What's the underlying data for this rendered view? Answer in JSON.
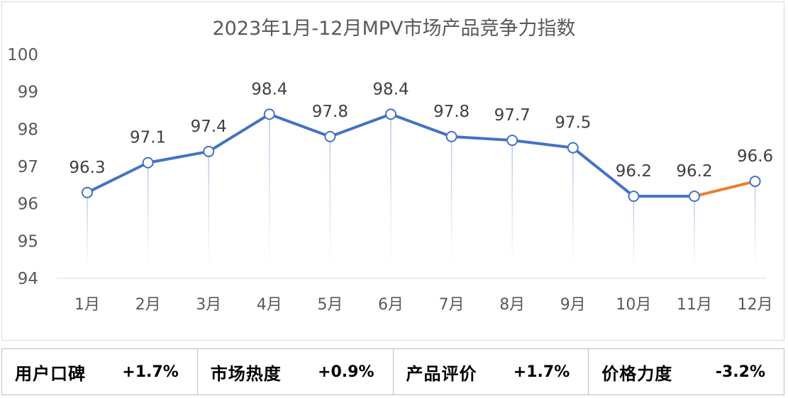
{
  "chart_data": {
    "type": "line",
    "title": "2023年1月-12月MPV市场产品竞争力指数",
    "categories": [
      "1月",
      "2月",
      "3月",
      "4月",
      "5月",
      "6月",
      "7月",
      "8月",
      "9月",
      "10月",
      "11月",
      "12月"
    ],
    "values": [
      96.3,
      97.1,
      97.4,
      98.4,
      97.8,
      98.4,
      97.8,
      97.7,
      97.5,
      96.2,
      96.2,
      96.6
    ],
    "value_labels": [
      "96.3",
      "97.1",
      "97.4",
      "98.4",
      "97.8",
      "98.4",
      "97.8",
      "97.7",
      "97.5",
      "96.2",
      "96.2",
      "96.6"
    ],
    "ylim": [
      94,
      100
    ],
    "yticks": [
      "94",
      "95",
      "96",
      "97",
      "98",
      "99",
      "100"
    ],
    "xlabel": "",
    "ylabel": "",
    "grid": false,
    "line_color": "#4472c4",
    "highlight_last_segment_color": "#ed7d31",
    "drop_line_color": "#b4c7e7"
  },
  "metrics": [
    {
      "label": "用户口碑",
      "value": "+1.7%"
    },
    {
      "label": "市场热度",
      "value": "+0.9%"
    },
    {
      "label": "产品评价",
      "value": "+1.7%"
    },
    {
      "label": "价格力度",
      "value": "-3.2%"
    }
  ]
}
